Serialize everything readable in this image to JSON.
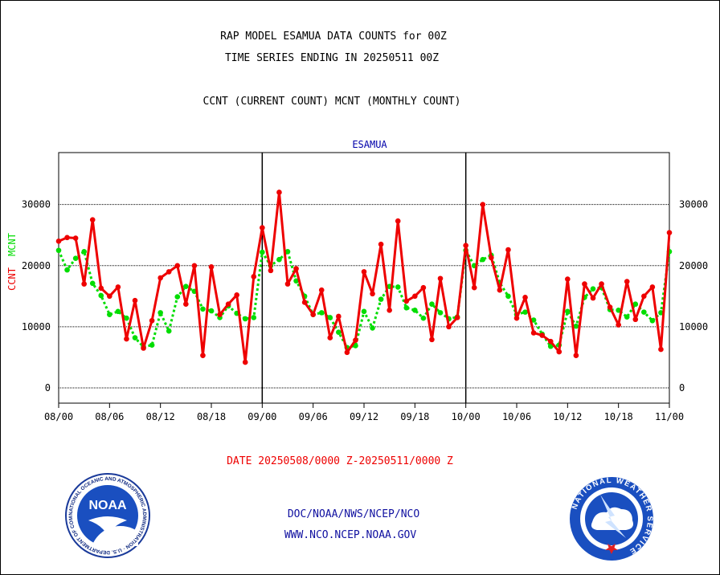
{
  "header": {
    "title_line1": "RAP MODEL ESAMUA DATA COUNTS for 00Z",
    "title_line2": "TIME SERIES ENDING IN 20250511 00Z",
    "subtitle": "CCNT (CURRENT COUNT) MCNT (MONTHLY COUNT)"
  },
  "chart_data": {
    "type": "line",
    "title": "ESAMUA",
    "ylabel_left_a": "CCNT",
    "ylabel_left_b": "MCNT",
    "xlabel": "DATE 20250508/0000 Z-20250511/0000 Z",
    "ylim": [
      -2500,
      38500
    ],
    "yticks": [
      0,
      10000,
      20000,
      30000
    ],
    "ytick_labels": [
      "0",
      "10000",
      "20000",
      "30000"
    ],
    "xlim": [
      0,
      72
    ],
    "xticks": [
      0,
      6,
      12,
      18,
      24,
      30,
      36,
      42,
      48,
      54,
      60,
      66,
      72
    ],
    "xtick_labels": [
      "08/00",
      "08/06",
      "08/12",
      "08/18",
      "09/00",
      "09/06",
      "09/12",
      "09/18",
      "10/00",
      "10/06",
      "10/12",
      "10/18",
      "11/00"
    ],
    "day_dividers": [
      24,
      48
    ],
    "grid": true,
    "colors": {
      "ccnt": "#ee0000",
      "mcnt": "#00dd00",
      "title": "#0000aa"
    },
    "series": [
      {
        "name": "CCNT",
        "style": "solid",
        "values": [
          24000,
          24600,
          24500,
          17000,
          27500,
          16300,
          15000,
          16500,
          8000,
          14300,
          6500,
          11000,
          18000,
          19000,
          20000,
          13700,
          20000,
          5300,
          19800,
          12000,
          13700,
          15200,
          4200,
          18200,
          26200,
          19200,
          32000,
          17000,
          19500,
          14000,
          12000,
          16000,
          8200,
          11700,
          5800,
          7800,
          19000,
          15400,
          23500,
          12700,
          27300,
          14200,
          15000,
          16400,
          7900,
          17900,
          10000,
          11500,
          23300,
          16400,
          30000,
          21300,
          16000,
          22600,
          11400,
          14800,
          9000,
          8600,
          7600,
          5900,
          17800,
          5300,
          17000,
          14700,
          17000,
          13200,
          10300,
          17400,
          11200,
          15000,
          16500,
          6300,
          25400
        ]
      },
      {
        "name": "MCNT",
        "style": "dotted",
        "values": [
          22500,
          19300,
          21200,
          22300,
          17100,
          15100,
          12000,
          12500,
          11400,
          8200,
          6700,
          7000,
          12300,
          9300,
          14900,
          16600,
          15800,
          12900,
          12600,
          11500,
          13400,
          12200,
          11300,
          11500,
          22200,
          20000,
          21000,
          22300,
          17500,
          15000,
          12000,
          12300,
          11500,
          9100,
          6600,
          6900,
          12500,
          9800,
          14500,
          16600,
          16500,
          13100,
          12700,
          11400,
          13700,
          12300,
          11300,
          11600,
          22500,
          20000,
          21000,
          21700,
          17200,
          15000,
          12000,
          12400,
          11100,
          8800,
          6800,
          7000,
          12500,
          10100,
          14800,
          16200,
          16400,
          12800,
          12700,
          11600,
          13700,
          12400,
          11000,
          12300,
          22300
        ]
      }
    ]
  },
  "footer": {
    "line1": "DOC/NOAA/NWS/NCEP/NCO",
    "line2": "WWW.NCO.NCEP.NOAA.GOV",
    "noaa_logo_text": "NOAA",
    "noaa_ring_text": "NATIONAL OCEANIC AND ATMOSPHERIC ADMINISTRATION · U.S. DEPARTMENT OF COMMERCE",
    "nws_ring_text": "NATIONAL WEATHER SERVICE"
  }
}
